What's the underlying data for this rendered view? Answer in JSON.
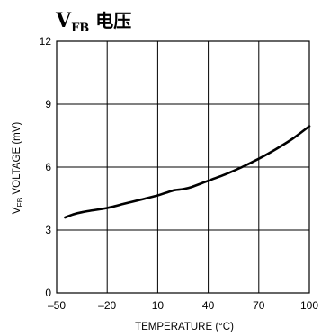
{
  "chart_data": {
    "type": "line",
    "title": {
      "main": "V",
      "subscript": "FB",
      "suffix": " 电压"
    },
    "xlabel": "TEMPERATURE (°C)",
    "ylabel": {
      "main": "V",
      "subscript": "FB",
      "suffix": " VOLTAGE (mV)"
    },
    "xlim": [
      -50,
      100
    ],
    "ylim": [
      0,
      12
    ],
    "xticks": [
      -50,
      -20,
      10,
      40,
      70,
      100
    ],
    "xtick_labels": [
      "–50",
      "–20",
      "10",
      "40",
      "70",
      "100"
    ],
    "yticks": [
      0,
      3,
      6,
      9,
      12
    ],
    "ytick_labels": [
      "0",
      "3",
      "6",
      "9",
      "12"
    ],
    "grid": true,
    "series": [
      {
        "x": [
          -45,
          -40,
          -35,
          -30,
          -20,
          -10,
          0,
          10,
          15,
          20,
          25,
          30,
          40,
          50,
          60,
          70,
          80,
          90,
          100
        ],
        "y": [
          3.6,
          3.75,
          3.85,
          3.92,
          4.05,
          4.25,
          4.45,
          4.65,
          4.78,
          4.9,
          4.95,
          5.05,
          5.35,
          5.65,
          6.0,
          6.4,
          6.85,
          7.35,
          7.95
        ]
      }
    ],
    "color": "#000000"
  }
}
